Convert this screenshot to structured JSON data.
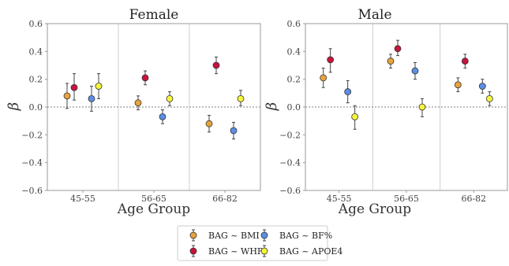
{
  "chart_data": [
    {
      "type": "scatter",
      "title": "Female",
      "xlabel": "Age Group",
      "ylabel": "β",
      "categories": [
        "45-55",
        "56-65",
        "66-82"
      ],
      "ylim": [
        -0.6,
        0.6
      ],
      "yticks": [
        "−0.6",
        "−0.4",
        "−0.2",
        "0.0",
        "0.2",
        "0.4",
        "0.6"
      ],
      "grid": false,
      "series": [
        {
          "name": "BAG ~ BMI",
          "color": "#e8a33a",
          "values": [
            0.08,
            0.03,
            -0.12
          ],
          "err_low": [
            -0.01,
            -0.02,
            -0.18
          ],
          "err_high": [
            0.17,
            0.08,
            -0.06
          ]
        },
        {
          "name": "BAG ~ WHR",
          "color": "#c8143c",
          "values": [
            0.14,
            0.21,
            0.3
          ],
          "err_low": [
            0.05,
            0.16,
            0.24
          ],
          "err_high": [
            0.24,
            0.26,
            0.36
          ]
        },
        {
          "name": "BAG ~ BF%",
          "color": "#5b8ee6",
          "values": [
            0.06,
            -0.07,
            -0.17
          ],
          "err_low": [
            -0.03,
            -0.12,
            -0.23
          ],
          "err_high": [
            0.15,
            -0.02,
            -0.11
          ]
        },
        {
          "name": "BAG ~ APOE4",
          "color": "#f5f53a",
          "values": [
            0.15,
            0.06,
            0.06
          ],
          "err_low": [
            0.06,
            0.01,
            0.01
          ],
          "err_high": [
            0.24,
            0.11,
            0.12
          ]
        }
      ]
    },
    {
      "type": "scatter",
      "title": "Male",
      "xlabel": "Age Group",
      "ylabel": "β",
      "categories": [
        "45-55",
        "56-65",
        "66-82"
      ],
      "ylim": [
        -0.6,
        0.6
      ],
      "yticks": [
        "−0.6",
        "−0.4",
        "−0.2",
        "0.0",
        "0.2",
        "0.4",
        "0.6"
      ],
      "grid": false,
      "series": [
        {
          "name": "BAG ~ BMI",
          "color": "#e8a33a",
          "values": [
            0.21,
            0.33,
            0.16
          ],
          "err_low": [
            0.14,
            0.28,
            0.11
          ],
          "err_high": [
            0.28,
            0.38,
            0.21
          ]
        },
        {
          "name": "BAG ~ WHR",
          "color": "#c8143c",
          "values": [
            0.34,
            0.42,
            0.33
          ],
          "err_low": [
            0.25,
            0.37,
            0.28
          ],
          "err_high": [
            0.42,
            0.48,
            0.38
          ]
        },
        {
          "name": "BAG ~ BF%",
          "color": "#5b8ee6",
          "values": [
            0.11,
            0.26,
            0.15
          ],
          "err_low": [
            0.03,
            0.2,
            0.1
          ],
          "err_high": [
            0.19,
            0.32,
            0.2
          ]
        },
        {
          "name": "BAG ~ APOE4",
          "color": "#f5f53a",
          "values": [
            -0.07,
            0.0,
            0.06
          ],
          "err_low": [
            -0.16,
            -0.07,
            0.01
          ],
          "err_high": [
            0.01,
            0.06,
            0.11
          ]
        }
      ]
    }
  ],
  "legend": {
    "placement": "bottom-center",
    "entries": [
      "BAG ~ BMI",
      "BAG ~ WHR",
      "BAG ~ BF%",
      "BAG ~ APOE4"
    ]
  },
  "colors": {
    "reference_line": "#555555",
    "group_divider": "#cfcfcf",
    "axis": "#999999"
  }
}
